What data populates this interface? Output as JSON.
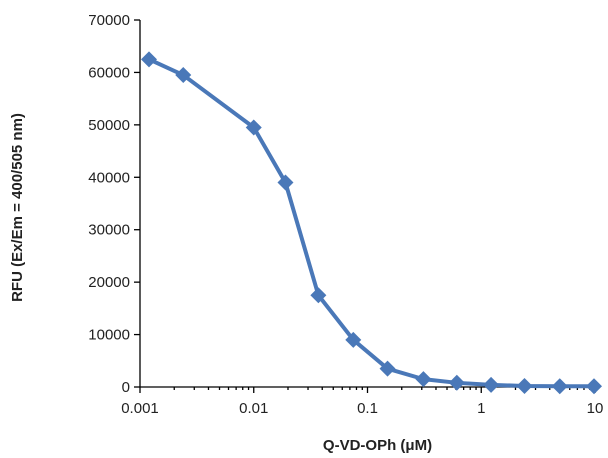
{
  "chart_data": {
    "type": "line",
    "title": "",
    "xlabel": "Q-VD-OPh (μM)",
    "ylabel": "RFU (Ex/Em = 400/505 nm)",
    "xscale": "log",
    "xlim": [
      0.001,
      10
    ],
    "ylim": [
      0,
      70000
    ],
    "xticks": [
      0.001,
      0.01,
      0.1,
      1,
      10
    ],
    "xtick_labels": [
      "0.001",
      "0.01",
      "0.1",
      "1",
      "10"
    ],
    "yticks": [
      0,
      10000,
      20000,
      30000,
      40000,
      50000,
      60000,
      70000
    ],
    "ytick_labels": [
      "0",
      "10000",
      "20000",
      "30000",
      "40000",
      "50000",
      "60000",
      "70000"
    ],
    "grid": false,
    "legend": "none",
    "series": [
      {
        "color": "#4a78b8",
        "marker": "diamond",
        "x": [
          0.0012,
          0.0024,
          0.01,
          0.019,
          0.037,
          0.075,
          0.15,
          0.31,
          0.61,
          1.22,
          2.4,
          4.9,
          9.8
        ],
        "y": [
          62500,
          59500,
          49500,
          39000,
          17500,
          9000,
          3500,
          1500,
          800,
          400,
          200,
          150,
          150
        ]
      }
    ]
  }
}
